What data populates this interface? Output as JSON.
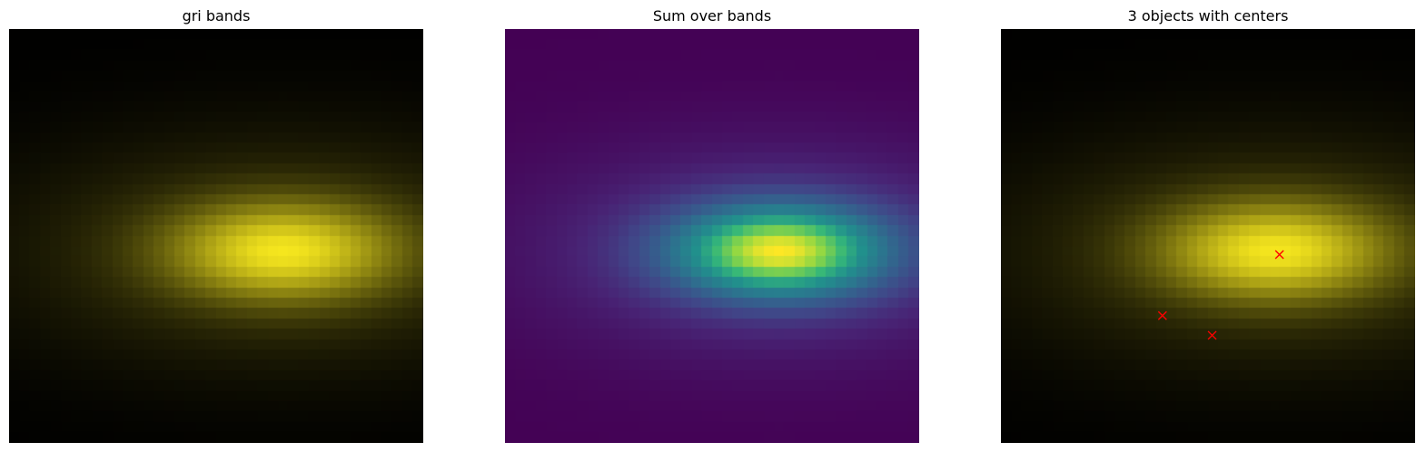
{
  "chart_data": [
    {
      "type": "heatmap",
      "title": "gri bands",
      "colormap": "rgb-composite",
      "grid": false,
      "pixels": 40,
      "source": {
        "x": 26.5,
        "y": 21.5,
        "sigma_x": 7.0,
        "sigma_y": 3.0
      },
      "tint": "#f5e61e",
      "markers": []
    },
    {
      "type": "heatmap",
      "title": "Sum over bands",
      "colormap": "viridis",
      "grid": false,
      "pixels": 40,
      "source": {
        "x": 26.5,
        "y": 21.5,
        "sigma_x": 7.0,
        "sigma_y": 3.0
      },
      "markers": []
    },
    {
      "type": "scatter-on-image",
      "title": "3 objects with centers",
      "colormap": "rgb-composite",
      "grid": false,
      "pixels": 40,
      "source": {
        "x": 26.5,
        "y": 21.5,
        "sigma_x": 7.0,
        "sigma_y": 3.0
      },
      "tint": "#f5e61e",
      "marker_symbol": "x",
      "marker_color": "#ff0000",
      "markers": [
        {
          "x": 26.9,
          "y": 21.8
        },
        {
          "x": 15.6,
          "y": 27.7
        },
        {
          "x": 20.4,
          "y": 29.6
        }
      ]
    }
  ]
}
